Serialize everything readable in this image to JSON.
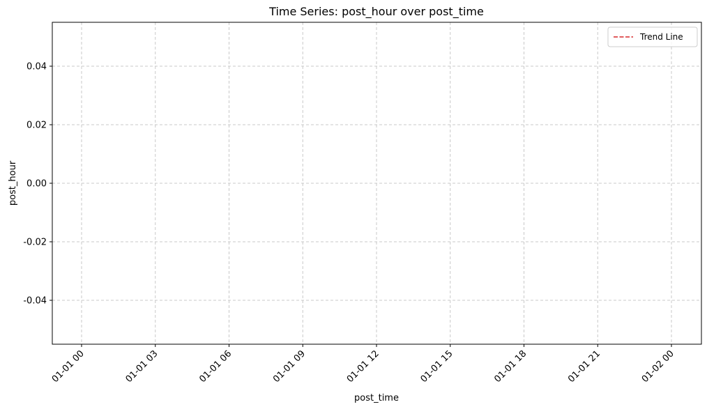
{
  "chart_data": {
    "type": "line",
    "title": "Time Series: post_hour over post_time",
    "xlabel": "post_time",
    "ylabel": "post_hour",
    "xlim": [
      "2000-01-01 00:00",
      "2000-01-02 00:00"
    ],
    "ylim": [
      -0.055,
      0.055
    ],
    "x_ticks": [
      "01-01 00",
      "01-01 03",
      "01-01 06",
      "01-01 09",
      "01-01 12",
      "01-01 15",
      "01-01 18",
      "01-01 21",
      "01-02 00"
    ],
    "y_ticks": [
      0.04,
      0.02,
      0.0,
      -0.02,
      -0.04
    ],
    "y_tick_labels": [
      "0.04",
      "0.02",
      "0.00",
      "-0.02",
      "-0.04"
    ],
    "grid": true,
    "legend_position": "top-right",
    "series": [
      {
        "name": "Trend Line",
        "style": "dashed",
        "color": "#d62728",
        "x": [],
        "y": []
      }
    ]
  }
}
